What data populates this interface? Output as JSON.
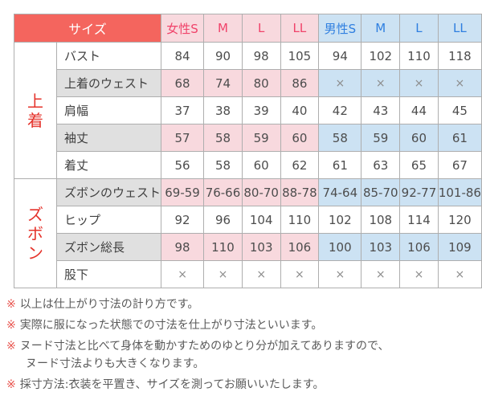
{
  "colors": {
    "header_red": "#f4655e",
    "female_header_bg": "#f8d9de",
    "female_header_text": "#f0436a",
    "male_header_bg": "#cce2f3",
    "male_header_text": "#2f7fe0",
    "row_label_gray_bg": "#e0e0e0",
    "group_label_red": "#e5332b",
    "note_marker_red": "#e8554f"
  },
  "table": {
    "corner_label": "サイズ",
    "female_header": [
      "女性S",
      "M",
      "L",
      "LL"
    ],
    "male_header": [
      "男性S",
      "M",
      "L",
      "LL"
    ],
    "groups": [
      {
        "label": "上着",
        "rows": [
          {
            "label": "バスト",
            "shaded": false,
            "values": [
              "84",
              "90",
              "98",
              "105",
              "94",
              "102",
              "110",
              "118"
            ]
          },
          {
            "label": "上着のウェスト",
            "shaded": true,
            "values": [
              "68",
              "74",
              "80",
              "86",
              "×",
              "×",
              "×",
              "×"
            ]
          },
          {
            "label": "肩幅",
            "shaded": false,
            "values": [
              "37",
              "38",
              "39",
              "40",
              "42",
              "43",
              "44",
              "45"
            ]
          },
          {
            "label": "袖丈",
            "shaded": true,
            "values": [
              "57",
              "58",
              "59",
              "60",
              "58",
              "59",
              "60",
              "61"
            ]
          },
          {
            "label": "着丈",
            "shaded": false,
            "values": [
              "56",
              "58",
              "60",
              "62",
              "61",
              "63",
              "65",
              "67"
            ]
          }
        ]
      },
      {
        "label": "ズボン",
        "rows": [
          {
            "label": "ズボンのウェスト",
            "shaded": true,
            "values": [
              "69-59",
              "76-66",
              "80-70",
              "88-78",
              "74-64",
              "85-70",
              "92-77",
              "101-86"
            ]
          },
          {
            "label": "ヒップ",
            "shaded": false,
            "values": [
              "92",
              "96",
              "104",
              "110",
              "102",
              "108",
              "114",
              "120"
            ]
          },
          {
            "label": "ズボン総長",
            "shaded": true,
            "values": [
              "98",
              "110",
              "103",
              "106",
              "100",
              "103",
              "106",
              "109"
            ]
          },
          {
            "label": "股下",
            "shaded": false,
            "values": [
              "×",
              "×",
              "×",
              "×",
              "×",
              "×",
              "×",
              "×"
            ]
          }
        ]
      }
    ]
  },
  "notes": {
    "marker": "※",
    "items": [
      {
        "lines": [
          "以上は仕上がり寸法の計り方です。"
        ]
      },
      {
        "lines": [
          "実際に服になった状態での寸法を仕上がり寸法といいます。"
        ]
      },
      {
        "lines": [
          "ヌード寸法と比べて身体を動かすためのゆとり分が加えてありますので、",
          "ヌード寸法よりも大きくなります。"
        ]
      },
      {
        "lines": [
          "採寸方法:衣装を平置き、サイズを測ってお願いいたします。"
        ]
      }
    ]
  }
}
